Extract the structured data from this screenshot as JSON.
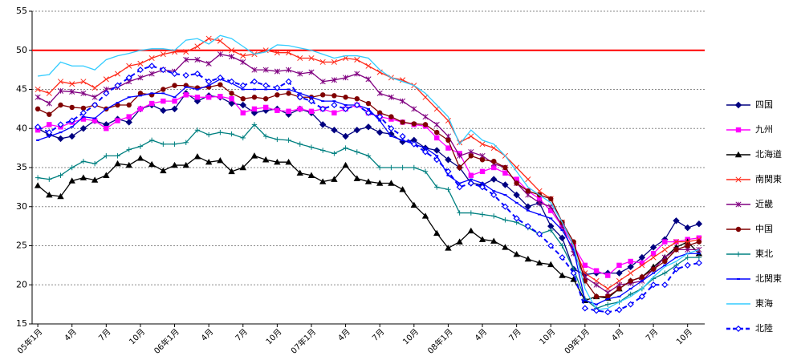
{
  "chart_data": {
    "type": "line",
    "categories": [
      "05年1月",
      null,
      null,
      "4月",
      null,
      null,
      "7月",
      null,
      null,
      "10月",
      null,
      null,
      "06年1月",
      null,
      null,
      "4月",
      null,
      null,
      "7月",
      null,
      null,
      "10月",
      null,
      null,
      "07年1月",
      null,
      null,
      "4月",
      null,
      null,
      "7月",
      null,
      null,
      "10月",
      null,
      null,
      "08年1月",
      null,
      null,
      "4月",
      null,
      null,
      "7月",
      null,
      null,
      "10月",
      null,
      null,
      "09年1月",
      null,
      null,
      "4月",
      null,
      null,
      "7月",
      null,
      null,
      "10月",
      null
    ],
    "ylim": [
      15,
      55
    ],
    "yticks": [
      15,
      20,
      25,
      30,
      35,
      40,
      45,
      50,
      55
    ],
    "grid": true,
    "reference_line": {
      "value": 50,
      "color": "#ff0000"
    },
    "legend": "right",
    "series": [
      {
        "name": "四国",
        "color": "#000080",
        "marker": "diamond",
        "values": [
          40.0,
          39.2,
          38.7,
          39.0,
          40.0,
          41.0,
          40.5,
          41.2,
          40.8,
          42.5,
          43.0,
          42.3,
          42.5,
          44.5,
          43.5,
          44.2,
          44.0,
          43.2,
          43.0,
          42.0,
          42.3,
          42.5,
          41.8,
          42.5,
          42.0,
          40.5,
          39.8,
          39.0,
          39.8,
          40.2,
          39.5,
          39.3,
          38.3,
          38.5,
          37.5,
          37.2,
          36.0,
          35.0,
          33.0,
          32.8,
          33.5,
          32.8,
          31.5,
          30.0,
          30.5,
          27.5,
          26.0,
          22.0,
          21.3,
          21.5,
          21.5,
          21.5,
          22.3,
          23.5,
          24.8,
          25.8,
          28.2,
          27.3,
          27.8
        ]
      },
      {
        "name": "九州",
        "color": "#ff00ff",
        "marker": "square",
        "values": [
          39.8,
          40.5,
          40.2,
          40.8,
          41.2,
          41.0,
          40.0,
          41.0,
          41.5,
          42.5,
          43.2,
          43.5,
          43.5,
          44.3,
          44.0,
          44.0,
          44.1,
          43.8,
          42.0,
          42.5,
          42.7,
          42.3,
          42.2,
          42.5,
          42.2,
          42.5,
          42.0,
          42.5,
          43.0,
          42.0,
          41.5,
          41.2,
          40.8,
          40.5,
          40.3,
          38.8,
          37.5,
          36.8,
          34.0,
          34.5,
          35.0,
          34.3,
          33.5,
          32.0,
          31.0,
          29.5,
          27.5,
          25.0,
          22.5,
          21.8,
          21.2,
          22.5,
          23.0,
          22.8,
          24.0,
          25.5,
          25.5,
          25.8,
          26.0
        ]
      },
      {
        "name": "北海道",
        "color": "#000000",
        "marker": "triangle",
        "values": [
          32.7,
          31.5,
          31.3,
          33.3,
          33.7,
          33.4,
          34.0,
          35.5,
          35.3,
          36.2,
          35.4,
          34.6,
          35.3,
          35.3,
          36.4,
          35.7,
          35.9,
          34.5,
          35.0,
          36.5,
          36.0,
          35.7,
          35.7,
          34.3,
          34.0,
          33.2,
          33.5,
          35.3,
          33.6,
          33.2,
          33.0,
          33.0,
          32.2,
          30.2,
          28.8,
          26.6,
          24.7,
          25.5,
          26.9,
          25.8,
          25.6,
          24.8,
          23.9,
          23.3,
          22.8,
          22.6,
          21.2,
          20.7,
          18.0,
          18.5,
          18.3,
          19.5,
          20.5,
          21.0,
          22.3,
          23.5,
          24.8,
          25.5,
          24.0
        ]
      },
      {
        "name": "南関東",
        "color": "#ff2a1a",
        "marker": "x",
        "values": [
          45.0,
          44.5,
          46.0,
          45.7,
          46.0,
          45.2,
          46.3,
          47.0,
          48.0,
          48.3,
          49.0,
          49.5,
          49.8,
          49.8,
          50.5,
          51.5,
          51.2,
          50.0,
          49.3,
          49.5,
          50.0,
          49.7,
          49.7,
          49.0,
          49.0,
          48.5,
          48.5,
          49.0,
          48.8,
          48.0,
          47.2,
          46.5,
          46.2,
          45.5,
          44.0,
          42.5,
          41.0,
          38.2,
          39.0,
          38.0,
          37.5,
          36.5,
          35.0,
          33.5,
          32.0,
          31.0,
          28.0,
          25.0,
          21.5,
          20.5,
          19.5,
          20.5,
          21.5,
          22.5,
          23.5,
          24.5,
          25.5,
          25.5,
          25.8
        ]
      },
      {
        "name": "近畿",
        "color": "#800080",
        "marker": "asterisk",
        "values": [
          44.0,
          43.2,
          44.8,
          44.7,
          44.5,
          44.0,
          45.0,
          45.3,
          46.0,
          46.5,
          47.0,
          47.5,
          47.3,
          48.8,
          48.8,
          48.3,
          49.5,
          49.2,
          48.5,
          47.5,
          47.5,
          47.3,
          47.5,
          47.0,
          47.2,
          46.0,
          46.2,
          46.5,
          47.0,
          46.3,
          44.5,
          44.0,
          43.5,
          42.5,
          41.5,
          40.5,
          39.0,
          36.5,
          37.0,
          36.5,
          35.5,
          35.0,
          33.0,
          31.5,
          30.5,
          30.0,
          27.5,
          24.0,
          21.0,
          20.0,
          19.0,
          20.0,
          20.2,
          20.5,
          22.0,
          23.5,
          24.5,
          24.5,
          24.5
        ]
      },
      {
        "name": "中国",
        "color": "#800000",
        "marker": "circle",
        "values": [
          42.5,
          41.8,
          43.0,
          42.7,
          42.6,
          43.0,
          42.5,
          43.0,
          43.0,
          44.5,
          44.3,
          45.0,
          45.5,
          45.5,
          45.2,
          45.3,
          45.6,
          44.5,
          43.8,
          44.0,
          43.8,
          44.3,
          44.5,
          44.0,
          44.0,
          44.3,
          44.2,
          44.0,
          43.8,
          43.2,
          42.0,
          41.5,
          40.8,
          40.6,
          40.5,
          39.5,
          38.5,
          35.0,
          36.5,
          36.0,
          35.8,
          35.0,
          33.0,
          32.0,
          31.5,
          31.0,
          28.0,
          25.5,
          20.5,
          18.5,
          18.5,
          19.5,
          20.5,
          21.0,
          22.0,
          23.0,
          24.5,
          25.0,
          25.5
        ]
      },
      {
        "name": "東北",
        "color": "#008080",
        "marker": "plus",
        "values": [
          33.7,
          33.5,
          34.0,
          35.0,
          35.8,
          35.5,
          36.5,
          36.5,
          37.3,
          37.7,
          38.5,
          38.0,
          38.0,
          38.2,
          39.8,
          39.2,
          39.5,
          39.3,
          38.8,
          40.5,
          39.0,
          38.6,
          38.5,
          38.0,
          37.6,
          37.2,
          36.8,
          37.5,
          37.0,
          36.5,
          35.0,
          35.0,
          35.0,
          35.0,
          34.5,
          32.5,
          32.2,
          29.2,
          29.2,
          29.0,
          28.8,
          28.3,
          28.0,
          27.3,
          26.5,
          27.0,
          25.0,
          22.0,
          18.2,
          17.0,
          17.5,
          17.8,
          18.8,
          19.5,
          20.8,
          21.5,
          22.5,
          23.5,
          23.5
        ]
      },
      {
        "name": "北関東",
        "color": "#0000ff",
        "marker": "dash",
        "values": [
          38.5,
          39.0,
          39.5,
          40.2,
          41.5,
          41.3,
          42.5,
          43.3,
          44.0,
          44.2,
          44.5,
          44.5,
          44.0,
          45.3,
          45.0,
          45.5,
          46.3,
          45.8,
          45.0,
          45.0,
          45.0,
          45.0,
          45.0,
          44.5,
          44.0,
          43.5,
          43.5,
          43.0,
          43.0,
          42.5,
          41.0,
          39.0,
          38.5,
          38.0,
          37.5,
          36.5,
          34.0,
          33.0,
          33.5,
          33.0,
          32.0,
          31.5,
          30.5,
          29.5,
          29.0,
          28.5,
          27.0,
          24.5,
          18.0,
          17.5,
          18.2,
          18.5,
          19.5,
          20.5,
          21.5,
          22.5,
          23.5,
          24.0,
          24.0
        ]
      },
      {
        "name": "東海",
        "color": "#33ccff",
        "marker": "none",
        "values": [
          46.7,
          46.9,
          48.5,
          48.0,
          48.0,
          47.5,
          48.8,
          49.3,
          49.6,
          50.0,
          50.2,
          50.2,
          50.0,
          51.3,
          51.5,
          50.8,
          51.9,
          51.5,
          50.5,
          49.5,
          49.8,
          50.7,
          50.6,
          50.3,
          50.0,
          49.5,
          49.0,
          49.3,
          49.3,
          49.0,
          47.5,
          46.5,
          46.0,
          45.5,
          44.5,
          43.0,
          41.5,
          38.0,
          39.8,
          38.5,
          38.0,
          36.5,
          34.5,
          32.5,
          31.5,
          30.5,
          28.0,
          25.0,
          19.5,
          16.8,
          17.0,
          17.8,
          18.5,
          19.5,
          21.0,
          22.3,
          23.0,
          24.0,
          24.5
        ]
      },
      {
        "name": "北陸",
        "color": "#0000ff",
        "marker": "open-diamond",
        "dashed": true,
        "values": [
          40.2,
          39.5,
          40.5,
          41.0,
          42.0,
          43.0,
          44.5,
          45.5,
          46.5,
          47.5,
          48.0,
          47.5,
          47.0,
          46.8,
          47.0,
          46.0,
          46.5,
          46.0,
          45.5,
          46.0,
          45.5,
          45.2,
          46.0,
          44.0,
          43.5,
          42.5,
          43.0,
          42.5,
          43.0,
          42.0,
          41.5,
          40.0,
          39.0,
          38.0,
          37.0,
          36.0,
          34.5,
          32.5,
          33.0,
          32.5,
          31.5,
          30.0,
          28.5,
          27.5,
          26.5,
          25.0,
          23.5,
          21.5,
          17.0,
          16.7,
          16.5,
          16.8,
          17.5,
          18.5,
          20.0,
          20.0,
          22.0,
          22.5,
          22.8
        ]
      }
    ]
  }
}
